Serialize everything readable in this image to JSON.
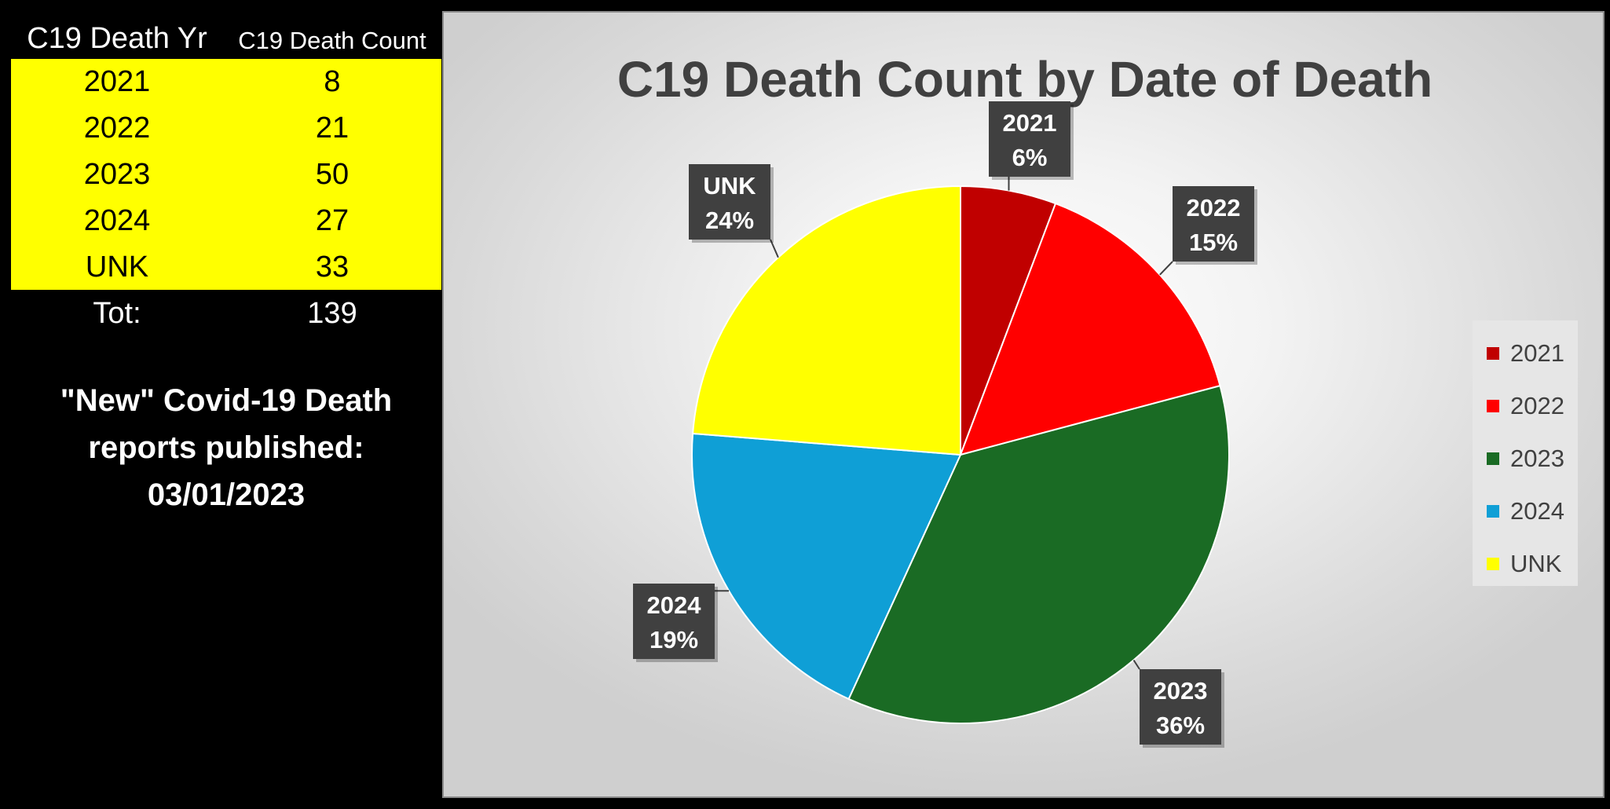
{
  "table": {
    "header": {
      "year": "C19 Death Yr",
      "count": "C19 Death Count"
    },
    "rows": [
      {
        "year": "2021",
        "count": "8"
      },
      {
        "year": "2022",
        "count": "21"
      },
      {
        "year": "2023",
        "count": "50"
      },
      {
        "year": "2024",
        "count": "27"
      },
      {
        "year": "UNK",
        "count": "33"
      }
    ],
    "total": {
      "label": "Tot:",
      "value": "139"
    },
    "row_color": "#ffff00"
  },
  "note": {
    "line1": "\"New\" Covid-19 Death",
    "line2": "reports published:",
    "line3": "03/01/2023"
  },
  "chart_data": {
    "type": "pie",
    "title": "C19 Death Count by Date of Death",
    "categories": [
      "2021",
      "2022",
      "2023",
      "2024",
      "UNK"
    ],
    "values": [
      8,
      21,
      50,
      27,
      33
    ],
    "percent_labels": [
      "6%",
      "15%",
      "36%",
      "19%",
      "24%"
    ],
    "colors": [
      "#c00000",
      "#ff0000",
      "#1a6b24",
      "#0f9fd6",
      "#ffff00"
    ],
    "legend_position": "right",
    "label_box_color": "#404040",
    "label_text_color": "#ffffff"
  }
}
